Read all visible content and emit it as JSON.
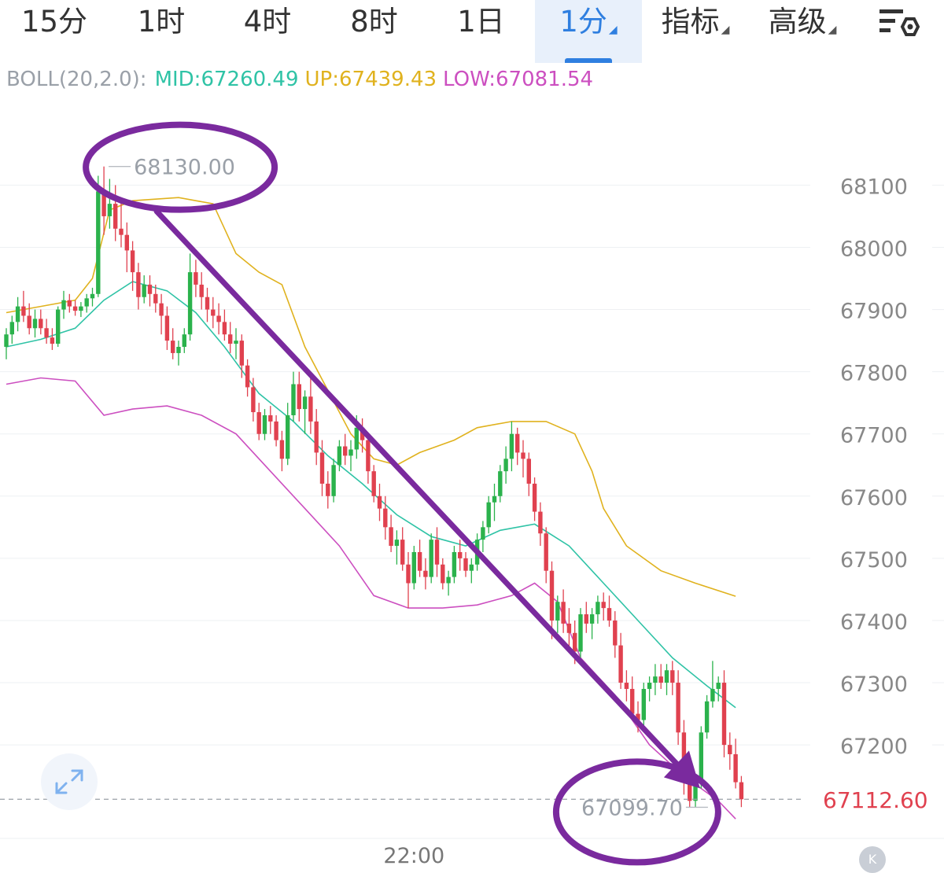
{
  "tabs": [
    {
      "label": "15分",
      "active": false,
      "dropdown": false
    },
    {
      "label": "1时",
      "active": false,
      "dropdown": false
    },
    {
      "label": "4时",
      "active": false,
      "dropdown": false
    },
    {
      "label": "8时",
      "active": false,
      "dropdown": false
    },
    {
      "label": "1日",
      "active": false,
      "dropdown": false
    },
    {
      "label": "1分",
      "active": true,
      "dropdown": true
    },
    {
      "label": "指标",
      "active": false,
      "dropdown": true
    },
    {
      "label": "高级",
      "active": false,
      "dropdown": true
    }
  ],
  "settings_icon": "chart-settings-icon",
  "indicator": {
    "name": "BOLL(20,2.0):",
    "mid": "MID:67260.49",
    "up": "UP:67439.43",
    "low": "LOW:67081.54"
  },
  "colors": {
    "mid": "#2fc3a6",
    "up": "#e0b21e",
    "low": "#cc4fc0",
    "up_candle": "#2bb24c",
    "down_candle": "#e0414f",
    "annotation": "#7a2a9e",
    "active_tab": "#2f7fe0",
    "current_price": "#e0414f"
  },
  "chart_data": {
    "type": "candlestick",
    "interval": "1分",
    "ylim": [
      67050,
      68200
    ],
    "yticks": [
      68100,
      68000,
      67900,
      67800,
      67700,
      67600,
      67500,
      67400,
      67300,
      67200
    ],
    "x_tick_labels": [
      {
        "index": 71,
        "label": "22:00"
      }
    ],
    "high_marker": {
      "index": 17,
      "value": 68130.0,
      "label": "68130.00"
    },
    "low_marker": {
      "index": 123,
      "value": 67099.7,
      "label": "67099.70"
    },
    "current_price": {
      "value": 67112.6,
      "label": "67112.60"
    },
    "annotations": [
      "circle around 68130.00",
      "circle around 67099.70",
      "arrow from high to low"
    ],
    "candles": [
      [
        67840,
        67870,
        67820,
        67860
      ],
      [
        67860,
        67890,
        67845,
        67880
      ],
      [
        67880,
        67920,
        67865,
        67905
      ],
      [
        67905,
        67930,
        67880,
        67890
      ],
      [
        67890,
        67910,
        67860,
        67870
      ],
      [
        67870,
        67900,
        67855,
        67885
      ],
      [
        67885,
        67900,
        67860,
        67870
      ],
      [
        67870,
        67885,
        67845,
        67855
      ],
      [
        67855,
        67870,
        67835,
        67845
      ],
      [
        67845,
        67905,
        67840,
        67900
      ],
      [
        67900,
        67930,
        67885,
        67915
      ],
      [
        67915,
        67925,
        67895,
        67905
      ],
      [
        67905,
        67915,
        67890,
        67898
      ],
      [
        67898,
        67912,
        67888,
        67905
      ],
      [
        67905,
        67925,
        67895,
        67918
      ],
      [
        67918,
        67935,
        67905,
        67925
      ],
      [
        67925,
        68115,
        67920,
        68090
      ],
      [
        68090,
        68130,
        68020,
        68050
      ],
      [
        68050,
        68110,
        68030,
        68070
      ],
      [
        68070,
        68100,
        68010,
        68030
      ],
      [
        68030,
        68075,
        68000,
        68020
      ],
      [
        68020,
        68040,
        67960,
        67995
      ],
      [
        67995,
        68010,
        67930,
        67960
      ],
      [
        67960,
        67975,
        67900,
        67920
      ],
      [
        67920,
        67955,
        67910,
        67940
      ],
      [
        67940,
        67955,
        67905,
        67925
      ],
      [
        67925,
        67940,
        67895,
        67910
      ],
      [
        67910,
        67925,
        67860,
        67890
      ],
      [
        67890,
        67905,
        67835,
        67850
      ],
      [
        67850,
        67870,
        67820,
        67830
      ],
      [
        67830,
        67850,
        67810,
        67840
      ],
      [
        67840,
        67870,
        67830,
        67860
      ],
      [
        67860,
        67990,
        67850,
        67960
      ],
      [
        67960,
        67980,
        67920,
        67940
      ],
      [
        67940,
        67960,
        67900,
        67920
      ],
      [
        67920,
        67935,
        67880,
        67900
      ],
      [
        67900,
        67920,
        67870,
        67890
      ],
      [
        67890,
        67910,
        67860,
        67880
      ],
      [
        67880,
        67900,
        67850,
        67860
      ],
      [
        67860,
        67880,
        67830,
        67845
      ],
      [
        67845,
        67870,
        67820,
        67850
      ],
      [
        67850,
        67860,
        67790,
        67810
      ],
      [
        67810,
        67820,
        67760,
        67775
      ],
      [
        67775,
        67790,
        67720,
        67735
      ],
      [
        67735,
        67750,
        67690,
        67700
      ],
      [
        67700,
        67740,
        67690,
        67730
      ],
      [
        67730,
        67745,
        67700,
        67720
      ],
      [
        67720,
        67730,
        67680,
        67690
      ],
      [
        67690,
        67705,
        67640,
        67660
      ],
      [
        67660,
        67750,
        67650,
        67730
      ],
      [
        67730,
        67800,
        67720,
        67780
      ],
      [
        67780,
        67800,
        67720,
        67740
      ],
      [
        67740,
        67770,
        67700,
        67760
      ],
      [
        67760,
        67790,
        67700,
        67720
      ],
      [
        67720,
        67740,
        67650,
        67670
      ],
      [
        67670,
        67690,
        67600,
        67620
      ],
      [
        67620,
        67640,
        67580,
        67600
      ],
      [
        67600,
        67660,
        67590,
        67650
      ],
      [
        67650,
        67690,
        67640,
        67680
      ],
      [
        67680,
        67700,
        67650,
        67665
      ],
      [
        67665,
        67690,
        67640,
        67675
      ],
      [
        67675,
        67730,
        67660,
        67710
      ],
      [
        67710,
        67725,
        67670,
        67690
      ],
      [
        67690,
        67700,
        67620,
        67640
      ],
      [
        67640,
        67650,
        67590,
        67600
      ],
      [
        67600,
        67620,
        67560,
        67580
      ],
      [
        67580,
        67600,
        67530,
        67550
      ],
      [
        67550,
        67570,
        67510,
        67520
      ],
      [
        67520,
        67545,
        67490,
        67530
      ],
      [
        67530,
        67550,
        67480,
        67490
      ],
      [
        67490,
        67510,
        67420,
        67460
      ],
      [
        67460,
        67520,
        67450,
        67510
      ],
      [
        67510,
        67530,
        67470,
        67480
      ],
      [
        67480,
        67500,
        67450,
        67470
      ],
      [
        67470,
        67540,
        67460,
        67530
      ],
      [
        67530,
        67550,
        67470,
        67490
      ],
      [
        67490,
        67500,
        67450,
        67460
      ],
      [
        67460,
        67480,
        67440,
        67470
      ],
      [
        67470,
        67520,
        67460,
        67510
      ],
      [
        67510,
        67530,
        67480,
        67500
      ],
      [
        67500,
        67510,
        67470,
        67480
      ],
      [
        67480,
        67500,
        67460,
        67490
      ],
      [
        67490,
        67540,
        67480,
        67530
      ],
      [
        67530,
        67560,
        67510,
        67550
      ],
      [
        67550,
        67600,
        67540,
        67590
      ],
      [
        67590,
        67620,
        67560,
        67600
      ],
      [
        67600,
        67650,
        67590,
        67640
      ],
      [
        67640,
        67680,
        67620,
        67660
      ],
      [
        67660,
        67720,
        67640,
        67700
      ],
      [
        67700,
        67710,
        67650,
        67670
      ],
      [
        67670,
        67690,
        67630,
        67660
      ],
      [
        67660,
        67670,
        67600,
        67620
      ],
      [
        67620,
        67630,
        67560,
        67575
      ],
      [
        67575,
        67590,
        67520,
        67540
      ],
      [
        67540,
        67550,
        67460,
        67480
      ],
      [
        67480,
        67495,
        67370,
        67400
      ],
      [
        67400,
        67440,
        67380,
        67430
      ],
      [
        67430,
        67450,
        67380,
        67395
      ],
      [
        67395,
        67420,
        67350,
        67380
      ],
      [
        67380,
        67400,
        67330,
        67350
      ],
      [
        67350,
        67420,
        67340,
        67410
      ],
      [
        67410,
        67430,
        67380,
        67395
      ],
      [
        67395,
        67420,
        67370,
        67410
      ],
      [
        67410,
        67440,
        67395,
        67430
      ],
      [
        67430,
        67445,
        67400,
        67420
      ],
      [
        67420,
        67440,
        67390,
        67400
      ],
      [
        67400,
        67415,
        67340,
        67360
      ],
      [
        67360,
        67380,
        67290,
        67300
      ],
      [
        67300,
        67320,
        67270,
        67290
      ],
      [
        67290,
        67310,
        67240,
        67250
      ],
      [
        67250,
        67270,
        67220,
        67240
      ],
      [
        67240,
        67300,
        67230,
        67290
      ],
      [
        67290,
        67310,
        67270,
        67300
      ],
      [
        67300,
        67330,
        67280,
        67310
      ],
      [
        67310,
        67330,
        67290,
        67300
      ],
      [
        67300,
        67330,
        67280,
        67320
      ],
      [
        67320,
        67335,
        67280,
        67300
      ],
      [
        67300,
        67320,
        67200,
        67220
      ],
      [
        67220,
        67240,
        67120,
        67140
      ],
      [
        67140,
        67160,
        67100,
        67110
      ],
      [
        67110,
        67150,
        67100,
        67140
      ],
      [
        67140,
        67230,
        67130,
        67220
      ],
      [
        67220,
        67280,
        67210,
        67270
      ],
      [
        67270,
        67335,
        67260,
        67290
      ],
      [
        67290,
        67310,
        67270,
        67300
      ],
      [
        67300,
        67320,
        67180,
        67200
      ],
      [
        67200,
        67220,
        67160,
        67185
      ],
      [
        67185,
        67210,
        67130,
        67140
      ],
      [
        67140,
        67150,
        67100,
        67112.6
      ]
    ],
    "boll_mid": [
      [
        0,
        67840
      ],
      [
        6,
        67852
      ],
      [
        12,
        67870
      ],
      [
        17,
        67915
      ],
      [
        22,
        67945
      ],
      [
        28,
        67930
      ],
      [
        33,
        67895
      ],
      [
        38,
        67840
      ],
      [
        44,
        67765
      ],
      [
        50,
        67720
      ],
      [
        56,
        67665
      ],
      [
        62,
        67620
      ],
      [
        68,
        67570
      ],
      [
        74,
        67535
      ],
      [
        80,
        67520
      ],
      [
        86,
        67545
      ],
      [
        92,
        67555
      ],
      [
        98,
        67520
      ],
      [
        104,
        67460
      ],
      [
        110,
        67400
      ],
      [
        116,
        67340
      ],
      [
        122,
        67295
      ],
      [
        127,
        67260
      ]
    ],
    "boll_up": [
      [
        0,
        67895
      ],
      [
        6,
        67905
      ],
      [
        12,
        67915
      ],
      [
        15,
        67950
      ],
      [
        18,
        68060
      ],
      [
        22,
        68075
      ],
      [
        30,
        68080
      ],
      [
        36,
        68070
      ],
      [
        40,
        67990
      ],
      [
        44,
        67960
      ],
      [
        48,
        67940
      ],
      [
        52,
        67840
      ],
      [
        56,
        67770
      ],
      [
        60,
        67700
      ],
      [
        64,
        67660
      ],
      [
        68,
        67650
      ],
      [
        72,
        67670
      ],
      [
        78,
        67690
      ],
      [
        82,
        67710
      ],
      [
        88,
        67720
      ],
      [
        94,
        67720
      ],
      [
        99,
        67700
      ],
      [
        102,
        67640
      ],
      [
        104,
        67580
      ],
      [
        108,
        67520
      ],
      [
        114,
        67480
      ],
      [
        120,
        67460
      ],
      [
        127,
        67439
      ]
    ],
    "boll_low": [
      [
        0,
        67780
      ],
      [
        6,
        67790
      ],
      [
        12,
        67785
      ],
      [
        17,
        67730
      ],
      [
        22,
        67740
      ],
      [
        28,
        67745
      ],
      [
        34,
        67730
      ],
      [
        40,
        67700
      ],
      [
        46,
        67640
      ],
      [
        52,
        67580
      ],
      [
        58,
        67520
      ],
      [
        64,
        67440
      ],
      [
        70,
        67420
      ],
      [
        76,
        67420
      ],
      [
        82,
        67425
      ],
      [
        88,
        67440
      ],
      [
        92,
        67460
      ],
      [
        96,
        67430
      ],
      [
        100,
        67340
      ],
      [
        106,
        67280
      ],
      [
        112,
        67200
      ],
      [
        118,
        67150
      ],
      [
        124,
        67110
      ],
      [
        127,
        67081
      ]
    ]
  }
}
